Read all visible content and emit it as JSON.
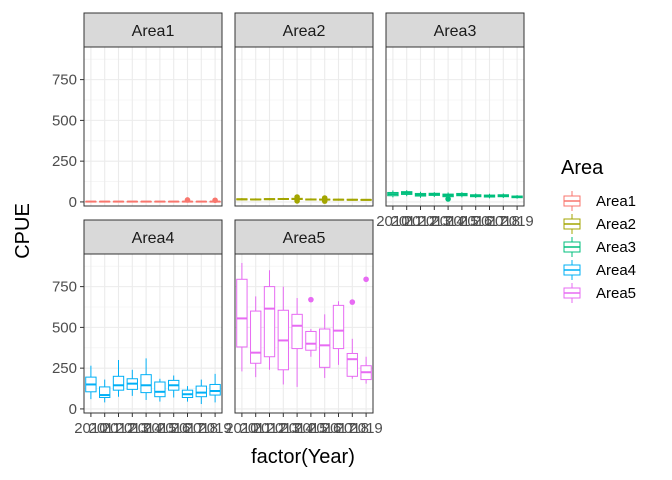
{
  "chart_data": {
    "type": "box",
    "xlabel": "factor(Year)",
    "ylabel": "CPUE",
    "ylim": [
      -25,
      950
    ],
    "yticks": [
      0,
      250,
      500,
      750
    ],
    "years": [
      "2010",
      "2011",
      "2012",
      "2013",
      "2014",
      "2015",
      "2016",
      "2017",
      "2018",
      "2019"
    ],
    "legend": {
      "title": "Area",
      "position": "right"
    },
    "grid": true,
    "panels": [
      {
        "name": "Area1",
        "color": "#F8766D",
        "boxes": [
          {
            "year": "2010",
            "min": 0,
            "q1": 1,
            "median": 2,
            "q3": 3,
            "max": 5,
            "outliers": []
          },
          {
            "year": "2011",
            "min": 0,
            "q1": 1,
            "median": 2,
            "q3": 3,
            "max": 5,
            "outliers": []
          },
          {
            "year": "2012",
            "min": 0,
            "q1": 1,
            "median": 2,
            "q3": 3,
            "max": 5,
            "outliers": []
          },
          {
            "year": "2013",
            "min": 0,
            "q1": 1,
            "median": 2,
            "q3": 3,
            "max": 5,
            "outliers": []
          },
          {
            "year": "2014",
            "min": 0,
            "q1": 1,
            "median": 2,
            "q3": 3,
            "max": 5,
            "outliers": []
          },
          {
            "year": "2015",
            "min": 0,
            "q1": 1,
            "median": 2,
            "q3": 3,
            "max": 5,
            "outliers": []
          },
          {
            "year": "2016",
            "min": 0,
            "q1": 1,
            "median": 2,
            "q3": 3,
            "max": 5,
            "outliers": []
          },
          {
            "year": "2017",
            "min": 0,
            "q1": 1,
            "median": 2,
            "q3": 3,
            "max": 6,
            "outliers": [
              12
            ]
          },
          {
            "year": "2018",
            "min": 0,
            "q1": 1,
            "median": 2,
            "q3": 3,
            "max": 5,
            "outliers": []
          },
          {
            "year": "2019",
            "min": 0,
            "q1": 1,
            "median": 2,
            "q3": 3,
            "max": 5,
            "outliers": [
              10
            ]
          }
        ]
      },
      {
        "name": "Area2",
        "color": "#A3A500",
        "boxes": [
          {
            "year": "2010",
            "min": 10,
            "q1": 13,
            "median": 16,
            "q3": 19,
            "max": 23,
            "outliers": []
          },
          {
            "year": "2011",
            "min": 10,
            "q1": 13,
            "median": 15,
            "q3": 18,
            "max": 22,
            "outliers": []
          },
          {
            "year": "2012",
            "min": 11,
            "q1": 14,
            "median": 17,
            "q3": 20,
            "max": 24,
            "outliers": []
          },
          {
            "year": "2013",
            "min": 12,
            "q1": 15,
            "median": 18,
            "q3": 21,
            "max": 25,
            "outliers": []
          },
          {
            "year": "2014",
            "min": 12,
            "q1": 15,
            "median": 18,
            "q3": 22,
            "max": 26,
            "outliers": [
              6,
              30
            ]
          },
          {
            "year": "2015",
            "min": 9,
            "q1": 12,
            "median": 15,
            "q3": 18,
            "max": 22,
            "outliers": []
          },
          {
            "year": "2016",
            "min": 9,
            "q1": 12,
            "median": 14,
            "q3": 17,
            "max": 21,
            "outliers": [
              5,
              24
            ]
          },
          {
            "year": "2017",
            "min": 8,
            "q1": 11,
            "median": 14,
            "q3": 16,
            "max": 20,
            "outliers": []
          },
          {
            "year": "2018",
            "min": 8,
            "q1": 11,
            "median": 13,
            "q3": 16,
            "max": 19,
            "outliers": []
          },
          {
            "year": "2019",
            "min": 8,
            "q1": 10,
            "median": 13,
            "q3": 15,
            "max": 18,
            "outliers": []
          }
        ]
      },
      {
        "name": "Area3",
        "color": "#00BF7D",
        "boxes": [
          {
            "year": "2010",
            "min": 28,
            "q1": 38,
            "median": 48,
            "q3": 58,
            "max": 70,
            "outliers": []
          },
          {
            "year": "2011",
            "min": 35,
            "q1": 46,
            "median": 55,
            "q3": 63,
            "max": 72,
            "outliers": []
          },
          {
            "year": "2012",
            "min": 25,
            "q1": 36,
            "median": 44,
            "q3": 52,
            "max": 62,
            "outliers": []
          },
          {
            "year": "2013",
            "min": 30,
            "q1": 40,
            "median": 47,
            "q3": 53,
            "max": 60,
            "outliers": []
          },
          {
            "year": "2014",
            "min": 22,
            "q1": 32,
            "median": 40,
            "q3": 48,
            "max": 58,
            "outliers": [
              18
            ]
          },
          {
            "year": "2015",
            "min": 28,
            "q1": 38,
            "median": 45,
            "q3": 52,
            "max": 60,
            "outliers": []
          },
          {
            "year": "2016",
            "min": 24,
            "q1": 32,
            "median": 38,
            "q3": 44,
            "max": 52,
            "outliers": []
          },
          {
            "year": "2017",
            "min": 22,
            "q1": 30,
            "median": 36,
            "q3": 42,
            "max": 50,
            "outliers": []
          },
          {
            "year": "2018",
            "min": 24,
            "q1": 32,
            "median": 38,
            "q3": 44,
            "max": 52,
            "outliers": []
          },
          {
            "year": "2019",
            "min": 20,
            "q1": 26,
            "median": 31,
            "q3": 36,
            "max": 42,
            "outliers": []
          }
        ]
      },
      {
        "name": "Area4",
        "color": "#00B0F6",
        "boxes": [
          {
            "year": "2010",
            "min": 60,
            "q1": 105,
            "median": 150,
            "q3": 195,
            "max": 265,
            "outliers": []
          },
          {
            "year": "2011",
            "min": 40,
            "q1": 70,
            "median": 85,
            "q3": 135,
            "max": 180,
            "outliers": []
          },
          {
            "year": "2012",
            "min": 75,
            "q1": 115,
            "median": 145,
            "q3": 200,
            "max": 300,
            "outliers": []
          },
          {
            "year": "2013",
            "min": 80,
            "q1": 120,
            "median": 155,
            "q3": 185,
            "max": 240,
            "outliers": []
          },
          {
            "year": "2014",
            "min": 55,
            "q1": 100,
            "median": 145,
            "q3": 210,
            "max": 310,
            "outliers": []
          },
          {
            "year": "2015",
            "min": 45,
            "q1": 75,
            "median": 105,
            "q3": 165,
            "max": 185,
            "outliers": []
          },
          {
            "year": "2016",
            "min": 70,
            "q1": 115,
            "median": 145,
            "q3": 175,
            "max": 205,
            "outliers": []
          },
          {
            "year": "2017",
            "min": 45,
            "q1": 70,
            "median": 90,
            "q3": 115,
            "max": 140,
            "outliers": []
          },
          {
            "year": "2018",
            "min": 30,
            "q1": 75,
            "median": 100,
            "q3": 140,
            "max": 180,
            "outliers": []
          },
          {
            "year": "2019",
            "min": 40,
            "q1": 85,
            "median": 110,
            "q3": 150,
            "max": 215,
            "outliers": []
          }
        ]
      },
      {
        "name": "Area5",
        "color": "#E76BF3",
        "boxes": [
          {
            "year": "2010",
            "min": 230,
            "q1": 380,
            "median": 555,
            "q3": 795,
            "max": 895,
            "outliers": []
          },
          {
            "year": "2011",
            "min": 195,
            "q1": 280,
            "median": 345,
            "q3": 600,
            "max": 690,
            "outliers": []
          },
          {
            "year": "2012",
            "min": 240,
            "q1": 320,
            "median": 615,
            "q3": 750,
            "max": 850,
            "outliers": []
          },
          {
            "year": "2013",
            "min": 150,
            "q1": 240,
            "median": 420,
            "q3": 605,
            "max": 750,
            "outliers": []
          },
          {
            "year": "2014",
            "min": 135,
            "q1": 370,
            "median": 510,
            "q3": 580,
            "max": 680,
            "outliers": []
          },
          {
            "year": "2015",
            "min": 320,
            "q1": 360,
            "median": 400,
            "q3": 475,
            "max": 490,
            "outliers": [
              670
            ]
          },
          {
            "year": "2016",
            "min": 190,
            "q1": 255,
            "median": 390,
            "q3": 490,
            "max": 580,
            "outliers": []
          },
          {
            "year": "2017",
            "min": 270,
            "q1": 370,
            "median": 480,
            "q3": 635,
            "max": 660,
            "outliers": []
          },
          {
            "year": "2018",
            "min": 185,
            "q1": 200,
            "median": 305,
            "q3": 340,
            "max": 430,
            "outliers": [
              655
            ]
          },
          {
            "year": "2019",
            "min": 155,
            "q1": 180,
            "median": 225,
            "q3": 265,
            "max": 320,
            "outliers": [
              795
            ]
          }
        ]
      }
    ]
  }
}
